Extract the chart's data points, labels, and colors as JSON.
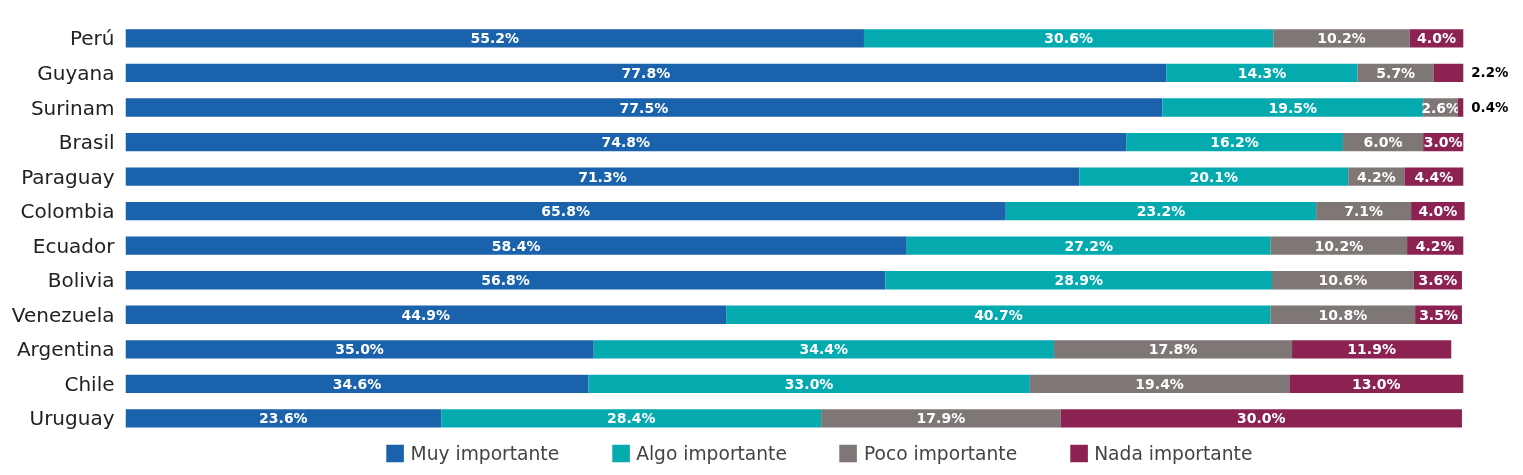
{
  "chart_data": {
    "type": "bar",
    "orientation": "horizontal",
    "stacked": true,
    "legend": "bottom",
    "tick_labels": "y",
    "categories": [
      "Perú",
      "Guyana",
      "Surinam",
      "Brasil",
      "Paraguay",
      "Colombia",
      "Ecuador",
      "Bolivia",
      "Venezuela",
      "Argentina",
      "Chile",
      "Uruguay"
    ],
    "series": [
      {
        "name": "Muy importante",
        "color": "#1a62ab",
        "values": [
          55.2,
          77.8,
          77.5,
          74.8,
          71.3,
          65.8,
          58.4,
          56.8,
          44.9,
          35.0,
          34.6,
          23.6
        ],
        "value_labels": [
          "55.2%",
          "77.8%",
          "77.5%",
          "74.8%",
          "71.3%",
          "65.8%",
          "58.4%",
          "56.8%",
          "44.9%",
          "35.0%",
          "34.6%",
          "23.6%"
        ]
      },
      {
        "name": "Algo importante",
        "color": "#05aaaf",
        "values": [
          30.6,
          14.3,
          19.5,
          16.2,
          20.1,
          23.2,
          27.2,
          28.9,
          40.7,
          34.4,
          33.0,
          28.4
        ],
        "value_labels": [
          "30.6%",
          "14.3%",
          "19.5%",
          "16.2%",
          "20.1%",
          "23.2%",
          "27.2%",
          "28.9%",
          "40.7%",
          "34.4%",
          "33.0%",
          "28.4%"
        ]
      },
      {
        "name": "Poco importante",
        "color": "#7f7776",
        "values": [
          10.2,
          5.7,
          2.6,
          6.0,
          4.2,
          7.1,
          10.2,
          10.6,
          10.8,
          17.8,
          19.4,
          17.9
        ],
        "value_labels": [
          "10.2%",
          "5.7%",
          "2.6%",
          "6.0%",
          "4.2%",
          "7.1%",
          "10.2%",
          "10.6%",
          "10.8%",
          "17.8%",
          "19.4%",
          "17.9%"
        ]
      },
      {
        "name": "Nada importante",
        "color": "#8b2252",
        "values": [
          4.0,
          2.2,
          0.4,
          3.0,
          4.4,
          4.0,
          4.2,
          3.6,
          3.5,
          11.9,
          13.0,
          30.0
        ],
        "value_labels": [
          "4.0%",
          "2.2%",
          "0.4%",
          "3.0%",
          "4.4%",
          "4.0%",
          "4.2%",
          "3.6%",
          "3.5%",
          "11.9%",
          "13.0%",
          "30.0%"
        ]
      }
    ]
  }
}
